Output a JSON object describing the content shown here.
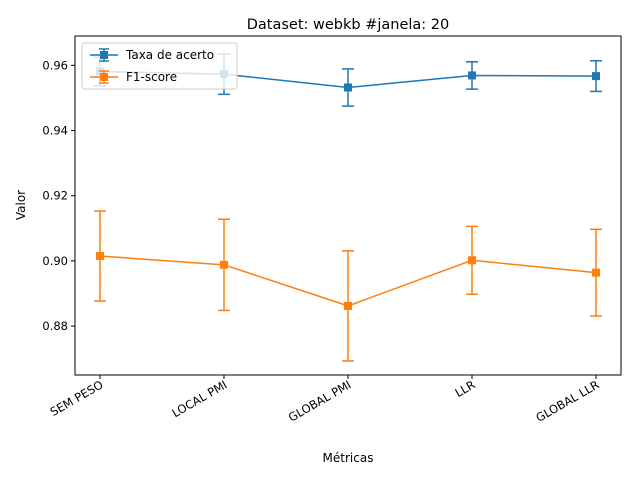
{
  "chart_data": {
    "type": "line",
    "title": "Dataset: webkb #janela: 20",
    "xlabel": "Métricas",
    "ylabel": "Valor",
    "categories": [
      "SEM PESO",
      "LOCAL PMI",
      "GLOBAL PMI",
      "LLR",
      "GLOBAL LLR"
    ],
    "ylim": [
      0.865,
      0.969
    ],
    "yticks": [
      0.88,
      0.9,
      0.92,
      0.94,
      0.96
    ],
    "ytick_labels": [
      "0.88",
      "0.90",
      "0.92",
      "0.94",
      "0.96"
    ],
    "grid": false,
    "legend_position": "upper-left",
    "series": [
      {
        "name": "Taxa de acerto",
        "color": "#1f77b4",
        "marker": "square",
        "values": [
          0.9581,
          0.9573,
          0.9532,
          0.9569,
          0.9567
        ],
        "errors": [
          0.0044,
          0.0062,
          0.0057,
          0.0042,
          0.0047
        ]
      },
      {
        "name": "F1-score",
        "color": "#ff7f0e",
        "marker": "square",
        "values": [
          0.9015,
          0.8988,
          0.8862,
          0.9002,
          0.8964
        ],
        "errors": [
          0.0138,
          0.014,
          0.0169,
          0.0104,
          0.0133
        ]
      }
    ]
  }
}
